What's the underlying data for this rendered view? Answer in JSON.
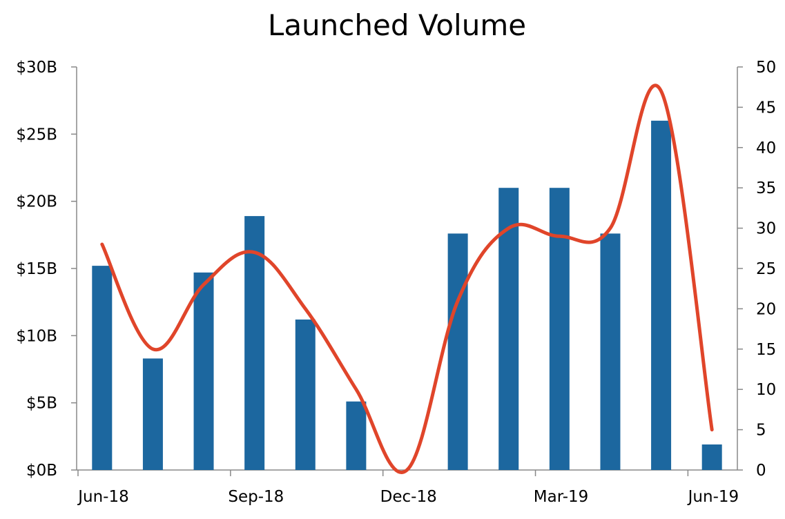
{
  "chart_data": {
    "type": "bar+line",
    "title": "Launched Volume",
    "categories": [
      "Jun-18",
      "Jul-18",
      "Aug-18",
      "Sep-18",
      "Oct-18",
      "Nov-18",
      "Dec-18",
      "Jan-19",
      "Feb-19",
      "Mar-19",
      "Apr-19",
      "May-19",
      "Jun-19"
    ],
    "x_tick_labels": [
      "Jun-18",
      "Sep-18",
      "Dec-18",
      "Mar-19",
      "Jun-19"
    ],
    "series": [
      {
        "type": "bar",
        "axis": "left",
        "color": "#1c679f",
        "values": [
          15.2,
          8.3,
          14.7,
          18.9,
          11.2,
          5.1,
          0,
          17.6,
          21.0,
          21.0,
          17.6,
          26.0,
          1.9
        ]
      },
      {
        "type": "line",
        "axis": "right",
        "color": "#e0452a",
        "smooth": true,
        "values": [
          28,
          15,
          23,
          27,
          20,
          10,
          0,
          21,
          30,
          29,
          30,
          47,
          5
        ]
      }
    ],
    "left_axis": {
      "ylim": [
        0,
        30
      ],
      "ticks": [
        "$0B",
        "$5B",
        "$10B",
        "$15B",
        "$20B",
        "$25B",
        "$30B"
      ],
      "values": [
        0,
        5,
        10,
        15,
        20,
        25,
        30
      ]
    },
    "right_axis": {
      "ylim": [
        0,
        50
      ],
      "ticks": [
        "0",
        "5",
        "10",
        "15",
        "20",
        "25",
        "30",
        "35",
        "40",
        "45",
        "50"
      ],
      "values": [
        0,
        5,
        10,
        15,
        20,
        25,
        30,
        35,
        40,
        45,
        50
      ]
    },
    "grid": false,
    "legend": "none"
  }
}
